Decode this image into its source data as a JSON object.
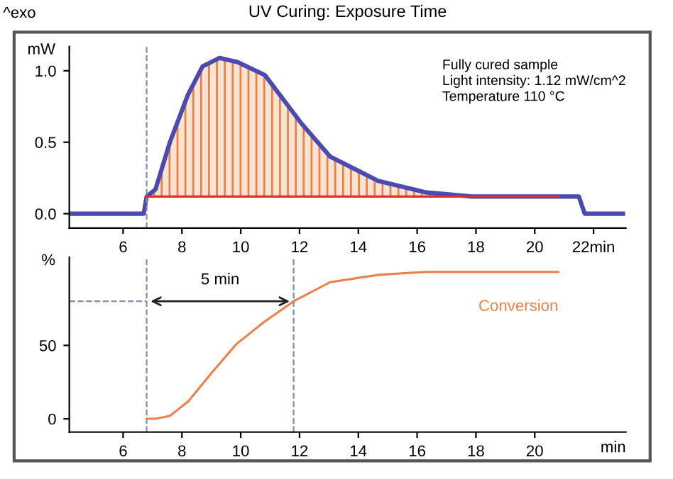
{
  "chart_data": [
    {
      "type": "line",
      "title": "UV Curing: Exposure Time",
      "ylabel": "mW",
      "annotations": [
        "^exo",
        "Fully cured sample\nLight intensity: 1.12 mW/cm^2\nTemperature 110 °C"
      ],
      "series": [
        {
          "type": "line",
          "color": "#e03020",
          "x": [
            6.8,
            10,
            14,
            20.8
          ],
          "values": [
            0.12,
            0.12,
            0.12,
            0.12
          ]
        },
        {
          "type": "area",
          "color": "#e8824a",
          "x": [
            6.8,
            7.1,
            7.59,
            8.2,
            8.7,
            9.28,
            9.9,
            10.82,
            12.07,
            13.04,
            14.67,
            16.27,
            17.87,
            19.5,
            20.8
          ],
          "values": [
            0.12,
            0.17,
            0.5,
            0.83,
            1.03,
            1.09,
            1.06,
            0.97,
            0.63,
            0.4,
            0.23,
            0.15,
            0.12,
            0.12,
            0.12
          ]
        },
        {
          "type": "line",
          "color": "#4a4ab0",
          "x": [
            4.2,
            6.7,
            6.8,
            7.1,
            7.59,
            8.2,
            8.7,
            9.28,
            9.9,
            10.82,
            12.07,
            13.04,
            14.67,
            16.27,
            17.87,
            19.5,
            21.5,
            21.7,
            23.0
          ],
          "values": [
            0,
            0,
            0.12,
            0.17,
            0.5,
            0.83,
            1.03,
            1.09,
            1.06,
            0.97,
            0.63,
            0.4,
            0.23,
            0.15,
            0.12,
            0.12,
            0.12,
            0,
            0
          ]
        }
      ],
      "xlim": [
        4.17,
        23.1
      ],
      "xticks": [
        6,
        8,
        10,
        12,
        14,
        16,
        18,
        20,
        {
          "value": 22,
          "label": "22min"
        }
      ],
      "ylim": [
        -0.1,
        1.17
      ],
      "yticks": [
        {
          "value": 0,
          "label": "0.0"
        },
        0.5,
        {
          "value": 1,
          "label": "1.0"
        }
      ],
      "ref_lines": [
        {
          "axis": "x",
          "value": 6.8,
          "color": "#8090a0",
          "line_style": "dashed"
        }
      ],
      "grid": false,
      "legend": false
    },
    {
      "type": "line",
      "ylabel": "%",
      "xlabel": "min",
      "annotations": [
        "5 min"
      ],
      "series": [
        {
          "name": "Conversion",
          "color": "#e8824a",
          "x": [
            6.8,
            7.1,
            7.59,
            8.22,
            9.04,
            9.86,
            10.8,
            11.8,
            13.04,
            14.67,
            16.27,
            18.0,
            20.8
          ],
          "values": [
            0,
            0,
            2,
            12,
            32,
            51,
            66,
            80,
            93,
            98,
            100,
            100,
            100
          ]
        }
      ],
      "xlim": [
        4.17,
        23.1
      ],
      "xticks": [
        6,
        8,
        10,
        12,
        14,
        16,
        18,
        20
      ],
      "ylim": [
        -9,
        110
      ],
      "yticks": [
        0,
        50
      ],
      "ref_lines": [
        {
          "axis": "x",
          "value": 6.8,
          "color": "#8090a0",
          "line_style": "dashed"
        },
        {
          "axis": "x",
          "value": 11.8,
          "color": "#8090a0",
          "line_style": "dashed"
        },
        {
          "axis": "y",
          "value": 80,
          "color": "#8090a0",
          "line_style": "dashed"
        }
      ],
      "grid": false,
      "legend": false
    }
  ]
}
